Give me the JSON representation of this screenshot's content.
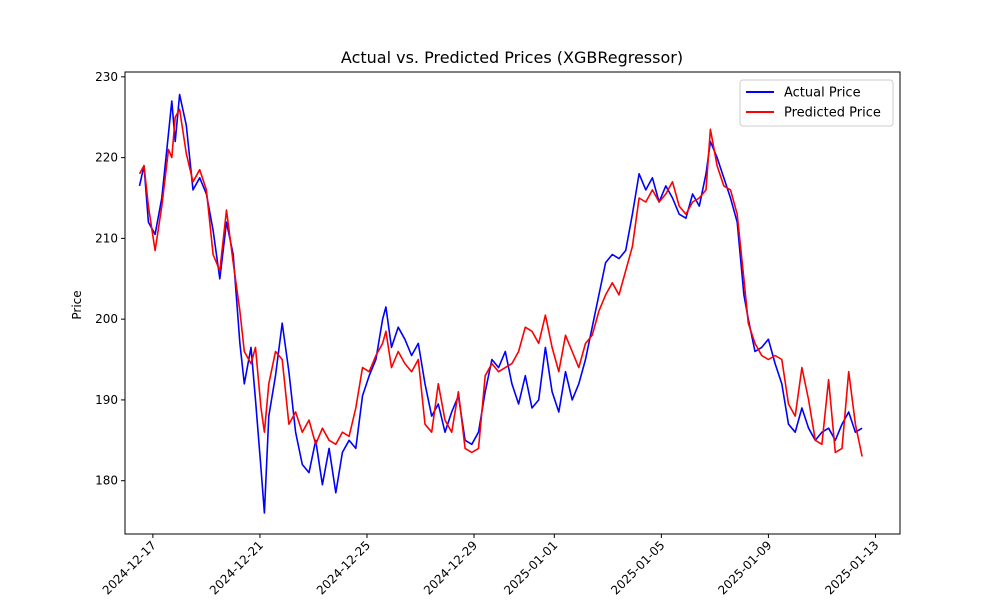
{
  "chart_data": {
    "type": "line",
    "title": "Actual vs. Predicted Prices (XGBRegressor)",
    "xlabel": "",
    "ylabel": "Price",
    "x_range": [
      "2024-12-15T23:00",
      "2025-01-13T22:00"
    ],
    "ylim": [
      173.4,
      230.6
    ],
    "y_ticks": [
      180,
      190,
      200,
      210,
      220,
      230
    ],
    "x_ticks": [
      "2024-12-17",
      "2024-12-21",
      "2024-12-25",
      "2024-12-29",
      "2025-01-01",
      "2025-01-05",
      "2025-01-09",
      "2025-01-13"
    ],
    "grid": false,
    "legend_position": "top-right",
    "series": [
      {
        "name": "Actual Price",
        "color": "#0000ff",
        "points": [
          [
            "2024-12-16T12:00",
            216.5
          ],
          [
            "2024-12-16T16:00",
            219.0
          ],
          [
            "2024-12-16T20:00",
            212.0
          ],
          [
            "2024-12-17T02:00",
            210.5
          ],
          [
            "2024-12-17T08:00",
            215.0
          ],
          [
            "2024-12-17T14:00",
            223.0
          ],
          [
            "2024-12-17T17:00",
            227.0
          ],
          [
            "2024-12-17T20:00",
            222.0
          ],
          [
            "2024-12-18T00:00",
            227.8
          ],
          [
            "2024-12-18T06:00",
            224.0
          ],
          [
            "2024-12-18T12:00",
            216.0
          ],
          [
            "2024-12-18T18:00",
            217.5
          ],
          [
            "2024-12-19T00:00",
            215.5
          ],
          [
            "2024-12-19T06:00",
            211.0
          ],
          [
            "2024-12-19T12:00",
            205.0
          ],
          [
            "2024-12-19T18:00",
            212.0
          ],
          [
            "2024-12-20T00:00",
            208.0
          ],
          [
            "2024-12-20T06:00",
            197.0
          ],
          [
            "2024-12-20T10:00",
            192.0
          ],
          [
            "2024-12-20T16:00",
            196.5
          ],
          [
            "2024-12-20T20:00",
            190.0
          ],
          [
            "2024-12-21T01:00",
            181.5
          ],
          [
            "2024-12-21T04:00",
            176.0
          ],
          [
            "2024-12-21T08:00",
            188.0
          ],
          [
            "2024-12-21T14:00",
            193.0
          ],
          [
            "2024-12-21T20:00",
            199.5
          ],
          [
            "2024-12-22T02:00",
            193.5
          ],
          [
            "2024-12-22T08:00",
            186.0
          ],
          [
            "2024-12-22T14:00",
            182.0
          ],
          [
            "2024-12-22T20:00",
            181.0
          ],
          [
            "2024-12-23T02:00",
            185.0
          ],
          [
            "2024-12-23T08:00",
            179.5
          ],
          [
            "2024-12-23T14:00",
            184.0
          ],
          [
            "2024-12-23T20:00",
            178.5
          ],
          [
            "2024-12-24T02:00",
            183.5
          ],
          [
            "2024-12-24T08:00",
            185.0
          ],
          [
            "2024-12-24T14:00",
            184.0
          ],
          [
            "2024-12-24T20:00",
            190.5
          ],
          [
            "2024-12-25T02:00",
            193.0
          ],
          [
            "2024-12-25T08:00",
            195.0
          ],
          [
            "2024-12-25T14:00",
            200.0
          ],
          [
            "2024-12-25T17:00",
            201.5
          ],
          [
            "2024-12-25T22:00",
            196.5
          ],
          [
            "2024-12-26T04:00",
            199.0
          ],
          [
            "2024-12-26T10:00",
            197.5
          ],
          [
            "2024-12-26T16:00",
            195.5
          ],
          [
            "2024-12-26T22:00",
            197.0
          ],
          [
            "2024-12-27T04:00",
            192.0
          ],
          [
            "2024-12-27T10:00",
            188.0
          ],
          [
            "2024-12-27T16:00",
            189.5
          ],
          [
            "2024-12-27T22:00",
            186.0
          ],
          [
            "2024-12-28T04:00",
            188.5
          ],
          [
            "2024-12-28T10:00",
            190.5
          ],
          [
            "2024-12-28T16:00",
            185.0
          ],
          [
            "2024-12-28T22:00",
            184.5
          ],
          [
            "2024-12-29T04:00",
            186.0
          ],
          [
            "2024-12-29T10:00",
            191.0
          ],
          [
            "2024-12-29T16:00",
            195.0
          ],
          [
            "2024-12-29T22:00",
            194.0
          ],
          [
            "2024-12-30T04:00",
            196.0
          ],
          [
            "2024-12-30T10:00",
            192.0
          ],
          [
            "2024-12-30T16:00",
            189.5
          ],
          [
            "2024-12-30T22:00",
            193.0
          ],
          [
            "2024-12-31T04:00",
            189.0
          ],
          [
            "2024-12-31T10:00",
            190.0
          ],
          [
            "2024-12-31T16:00",
            196.5
          ],
          [
            "2024-12-31T22:00",
            191.0
          ],
          [
            "2025-01-01T04:00",
            188.5
          ],
          [
            "2025-01-01T10:00",
            193.5
          ],
          [
            "2025-01-01T16:00",
            190.0
          ],
          [
            "2025-01-01T22:00",
            192.0
          ],
          [
            "2025-01-02T04:00",
            195.0
          ],
          [
            "2025-01-02T10:00",
            199.0
          ],
          [
            "2025-01-02T16:00",
            203.0
          ],
          [
            "2025-01-02T22:00",
            207.0
          ],
          [
            "2025-01-03T04:00",
            208.0
          ],
          [
            "2025-01-03T10:00",
            207.5
          ],
          [
            "2025-01-03T16:00",
            208.5
          ],
          [
            "2025-01-03T22:00",
            213.0
          ],
          [
            "2025-01-04T04:00",
            218.0
          ],
          [
            "2025-01-04T10:00",
            216.0
          ],
          [
            "2025-01-04T16:00",
            217.5
          ],
          [
            "2025-01-04T22:00",
            214.5
          ],
          [
            "2025-01-05T04:00",
            216.5
          ],
          [
            "2025-01-05T10:00",
            215.0
          ],
          [
            "2025-01-05T16:00",
            213.0
          ],
          [
            "2025-01-05T22:00",
            212.5
          ],
          [
            "2025-01-06T04:00",
            215.5
          ],
          [
            "2025-01-06T10:00",
            214.0
          ],
          [
            "2025-01-06T16:00",
            218.0
          ],
          [
            "2025-01-06T20:00",
            222.0
          ],
          [
            "2025-01-07T02:00",
            220.0
          ],
          [
            "2025-01-07T08:00",
            217.5
          ],
          [
            "2025-01-07T14:00",
            215.0
          ],
          [
            "2025-01-07T20:00",
            212.0
          ],
          [
            "2025-01-08T02:00",
            203.0
          ],
          [
            "2025-01-08T06:00",
            200.0
          ],
          [
            "2025-01-08T12:00",
            196.0
          ],
          [
            "2025-01-08T18:00",
            196.5
          ],
          [
            "2025-01-09T00:00",
            197.5
          ],
          [
            "2025-01-09T06:00",
            194.5
          ],
          [
            "2025-01-09T12:00",
            192.0
          ],
          [
            "2025-01-09T18:00",
            187.0
          ],
          [
            "2025-01-10T00:00",
            186.0
          ],
          [
            "2025-01-10T06:00",
            189.0
          ],
          [
            "2025-01-10T12:00",
            186.5
          ],
          [
            "2025-01-10T18:00",
            185.0
          ],
          [
            "2025-01-11T00:00",
            186.0
          ],
          [
            "2025-01-11T06:00",
            186.5
          ],
          [
            "2025-01-11T12:00",
            185.0
          ],
          [
            "2025-01-11T18:00",
            187.0
          ],
          [
            "2025-01-12T00:00",
            188.5
          ],
          [
            "2025-01-12T06:00",
            186.0
          ],
          [
            "2025-01-12T12:00",
            186.5
          ]
        ]
      },
      {
        "name": "Predicted Price",
        "color": "#ff0000",
        "points": [
          [
            "2024-12-16T12:00",
            218.0
          ],
          [
            "2024-12-16T16:00",
            219.0
          ],
          [
            "2024-12-16T20:00",
            214.0
          ],
          [
            "2024-12-17T02:00",
            208.5
          ],
          [
            "2024-12-17T08:00",
            214.0
          ],
          [
            "2024-12-17T14:00",
            221.0
          ],
          [
            "2024-12-17T17:00",
            220.0
          ],
          [
            "2024-12-17T20:00",
            225.0
          ],
          [
            "2024-12-18T00:00",
            226.0
          ],
          [
            "2024-12-18T06:00",
            220.5
          ],
          [
            "2024-12-18T12:00",
            217.0
          ],
          [
            "2024-12-18T18:00",
            218.5
          ],
          [
            "2024-12-19T00:00",
            216.0
          ],
          [
            "2024-12-19T06:00",
            208.0
          ],
          [
            "2024-12-19T12:00",
            206.0
          ],
          [
            "2024-12-19T18:00",
            213.5
          ],
          [
            "2024-12-20T00:00",
            207.0
          ],
          [
            "2024-12-20T06:00",
            201.0
          ],
          [
            "2024-12-20T10:00",
            196.0
          ],
          [
            "2024-12-20T16:00",
            194.5
          ],
          [
            "2024-12-20T20:00",
            196.5
          ],
          [
            "2024-12-21T01:00",
            189.0
          ],
          [
            "2024-12-21T04:00",
            186.0
          ],
          [
            "2024-12-21T08:00",
            192.0
          ],
          [
            "2024-12-21T14:00",
            196.0
          ],
          [
            "2024-12-21T20:00",
            195.0
          ],
          [
            "2024-12-22T02:00",
            187.0
          ],
          [
            "2024-12-22T08:00",
            188.5
          ],
          [
            "2024-12-22T14:00",
            186.0
          ],
          [
            "2024-12-22T20:00",
            187.5
          ],
          [
            "2024-12-23T02:00",
            184.5
          ],
          [
            "2024-12-23T08:00",
            186.5
          ],
          [
            "2024-12-23T14:00",
            185.0
          ],
          [
            "2024-12-23T20:00",
            184.5
          ],
          [
            "2024-12-24T02:00",
            186.0
          ],
          [
            "2024-12-24T08:00",
            185.5
          ],
          [
            "2024-12-24T14:00",
            189.0
          ],
          [
            "2024-12-24T20:00",
            194.0
          ],
          [
            "2024-12-25T02:00",
            193.5
          ],
          [
            "2024-12-25T08:00",
            195.5
          ],
          [
            "2024-12-25T14:00",
            197.0
          ],
          [
            "2024-12-25T17:00",
            198.5
          ],
          [
            "2024-12-25T22:00",
            194.0
          ],
          [
            "2024-12-26T04:00",
            196.0
          ],
          [
            "2024-12-26T10:00",
            194.5
          ],
          [
            "2024-12-26T16:00",
            193.5
          ],
          [
            "2024-12-26T22:00",
            195.0
          ],
          [
            "2024-12-27T04:00",
            187.0
          ],
          [
            "2024-12-27T10:00",
            186.0
          ],
          [
            "2024-12-27T16:00",
            192.0
          ],
          [
            "2024-12-27T22:00",
            187.5
          ],
          [
            "2024-12-28T04:00",
            186.0
          ],
          [
            "2024-12-28T10:00",
            191.0
          ],
          [
            "2024-12-28T16:00",
            184.0
          ],
          [
            "2024-12-28T22:00",
            183.5
          ],
          [
            "2024-12-29T04:00",
            184.0
          ],
          [
            "2024-12-29T10:00",
            193.0
          ],
          [
            "2024-12-29T16:00",
            194.5
          ],
          [
            "2024-12-29T22:00",
            193.5
          ],
          [
            "2024-12-30T04:00",
            194.0
          ],
          [
            "2024-12-30T10:00",
            194.5
          ],
          [
            "2024-12-30T16:00",
            196.0
          ],
          [
            "2024-12-30T22:00",
            199.0
          ],
          [
            "2024-12-31T04:00",
            198.5
          ],
          [
            "2024-12-31T10:00",
            197.0
          ],
          [
            "2024-12-31T16:00",
            200.5
          ],
          [
            "2024-12-31T22:00",
            196.5
          ],
          [
            "2025-01-01T04:00",
            193.5
          ],
          [
            "2025-01-01T10:00",
            198.0
          ],
          [
            "2025-01-01T16:00",
            196.0
          ],
          [
            "2025-01-01T22:00",
            194.0
          ],
          [
            "2025-01-02T04:00",
            197.0
          ],
          [
            "2025-01-02T10:00",
            198.0
          ],
          [
            "2025-01-02T16:00",
            201.0
          ],
          [
            "2025-01-02T22:00",
            203.0
          ],
          [
            "2025-01-03T04:00",
            204.5
          ],
          [
            "2025-01-03T10:00",
            203.0
          ],
          [
            "2025-01-03T16:00",
            206.0
          ],
          [
            "2025-01-03T22:00",
            209.0
          ],
          [
            "2025-01-04T04:00",
            215.0
          ],
          [
            "2025-01-04T10:00",
            214.5
          ],
          [
            "2025-01-04T16:00",
            216.0
          ],
          [
            "2025-01-04T22:00",
            214.5
          ],
          [
            "2025-01-05T04:00",
            215.5
          ],
          [
            "2025-01-05T10:00",
            217.0
          ],
          [
            "2025-01-05T16:00",
            214.0
          ],
          [
            "2025-01-05T22:00",
            213.0
          ],
          [
            "2025-01-06T04:00",
            214.5
          ],
          [
            "2025-01-06T10:00",
            215.0
          ],
          [
            "2025-01-06T16:00",
            216.0
          ],
          [
            "2025-01-06T20:00",
            223.5
          ],
          [
            "2025-01-07T02:00",
            219.0
          ],
          [
            "2025-01-07T08:00",
            216.5
          ],
          [
            "2025-01-07T14:00",
            216.0
          ],
          [
            "2025-01-07T20:00",
            213.0
          ],
          [
            "2025-01-08T02:00",
            205.0
          ],
          [
            "2025-01-08T06:00",
            199.5
          ],
          [
            "2025-01-08T12:00",
            197.0
          ],
          [
            "2025-01-08T18:00",
            195.5
          ],
          [
            "2025-01-09T00:00",
            195.0
          ],
          [
            "2025-01-09T06:00",
            195.5
          ],
          [
            "2025-01-09T12:00",
            195.0
          ],
          [
            "2025-01-09T18:00",
            189.5
          ],
          [
            "2025-01-10T00:00",
            188.0
          ],
          [
            "2025-01-10T06:00",
            194.0
          ],
          [
            "2025-01-10T12:00",
            190.0
          ],
          [
            "2025-01-10T18:00",
            185.0
          ],
          [
            "2025-01-11T00:00",
            184.5
          ],
          [
            "2025-01-11T06:00",
            192.5
          ],
          [
            "2025-01-11T12:00",
            183.5
          ],
          [
            "2025-01-11T18:00",
            184.0
          ],
          [
            "2025-01-12T00:00",
            193.5
          ],
          [
            "2025-01-12T06:00",
            187.0
          ],
          [
            "2025-01-12T12:00",
            183.0
          ]
        ]
      }
    ]
  }
}
